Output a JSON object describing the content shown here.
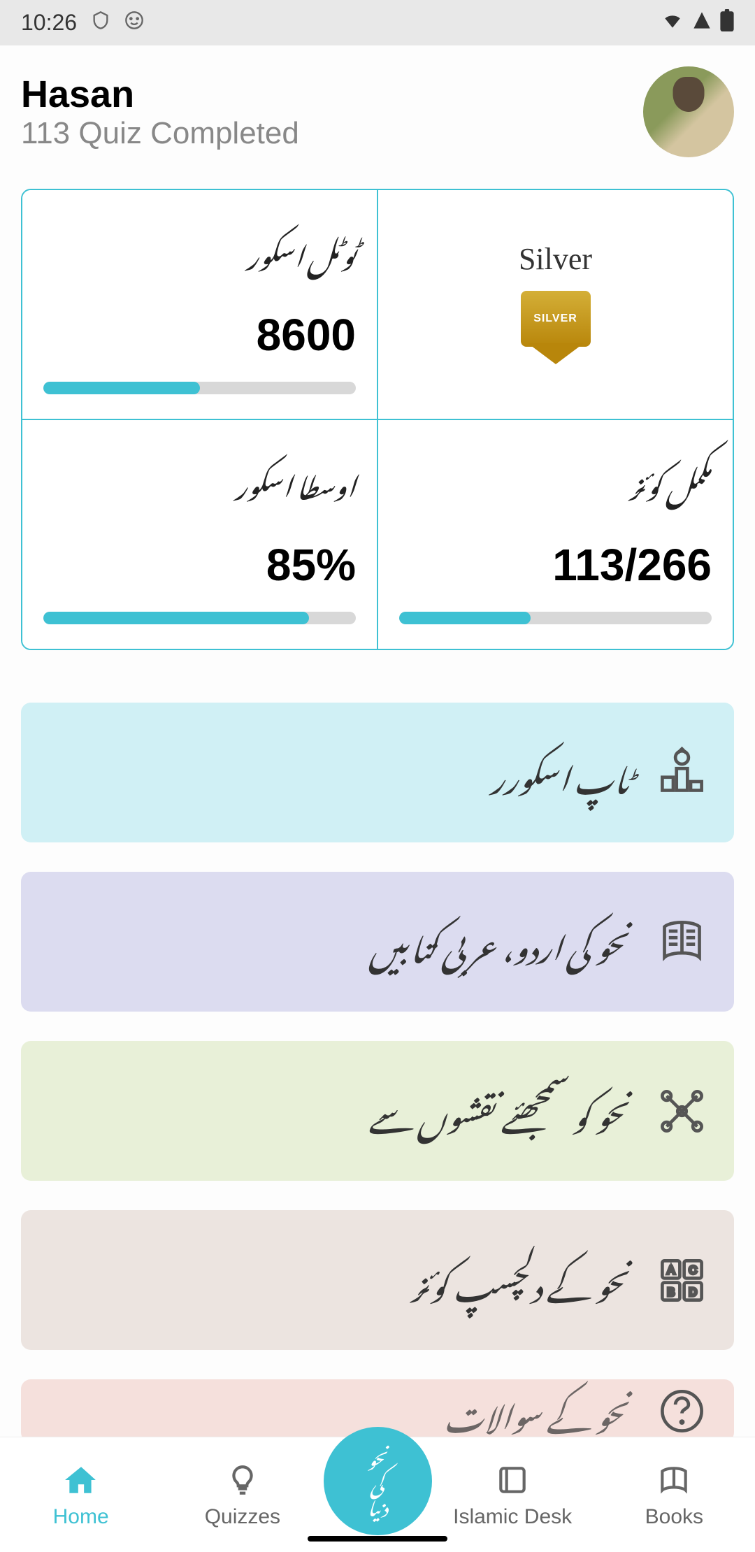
{
  "statusBar": {
    "time": "10:26"
  },
  "header": {
    "name": "Hasan",
    "subtitle": "113 Quiz Completed"
  },
  "stats": {
    "totalScore": {
      "label": "ٹوٹل اسکور",
      "value": "8600",
      "progress": 50
    },
    "badge": {
      "label": "Silver",
      "badgeText": "SILVER"
    },
    "averageScore": {
      "label": "اوسطا اسکور",
      "value": "85%",
      "progress": 85
    },
    "quizComplete": {
      "label": "مکمل کوئز",
      "value": "113/266",
      "progress": 42
    }
  },
  "menuCards": [
    {
      "text": "ٹاپ اسکورر",
      "bgColor": "#d0f0f5",
      "iconType": "podium"
    },
    {
      "text": "نحو کی اردو، عربی کتابیں",
      "bgColor": "#dcdcf0",
      "iconType": "book"
    },
    {
      "text": "نحو کو سمجھئے نقشوں سے",
      "bgColor": "#e8f0d8",
      "iconType": "network"
    },
    {
      "text": "نحو کے دلچسپ کوئز",
      "bgColor": "#ece4e0",
      "iconType": "quiz"
    }
  ],
  "bottomNav": {
    "items": [
      {
        "label": "Home",
        "active": true,
        "icon": "home"
      },
      {
        "label": "Quizzes",
        "active": false,
        "icon": "bulb"
      },
      {
        "label": "Islamic Desk",
        "active": false,
        "icon": "desk"
      },
      {
        "label": "Books",
        "active": false,
        "icon": "books"
      }
    ],
    "centerText": "نحو\nکی\nدنیا"
  },
  "colors": {
    "accent": "#3ec1d3",
    "progressBg": "#d8d8d8"
  }
}
